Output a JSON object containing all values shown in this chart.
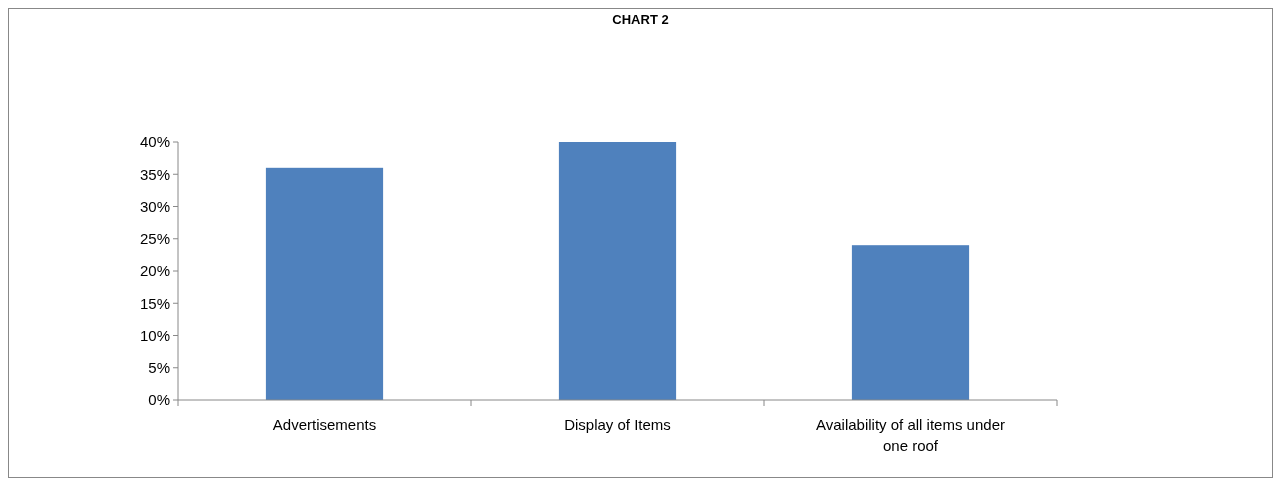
{
  "chart_data": {
    "type": "bar",
    "title": "CHART 2",
    "categories": [
      "Advertisements",
      "Display of Items",
      "Availability of all items under one roof"
    ],
    "values": [
      36,
      40,
      24
    ],
    "color": "#4f81bd",
    "ylim": [
      0,
      40
    ],
    "yticks": [
      {
        "value": 0,
        "label": "0%"
      },
      {
        "value": 5,
        "label": "5%"
      },
      {
        "value": 10,
        "label": "10%"
      },
      {
        "value": 15,
        "label": "15%"
      },
      {
        "value": 20,
        "label": "20%"
      },
      {
        "value": 25,
        "label": "25%"
      },
      {
        "value": 30,
        "label": "30%"
      },
      {
        "value": 35,
        "label": "35%"
      },
      {
        "value": 40,
        "label": "40%"
      }
    ],
    "grid": false
  }
}
